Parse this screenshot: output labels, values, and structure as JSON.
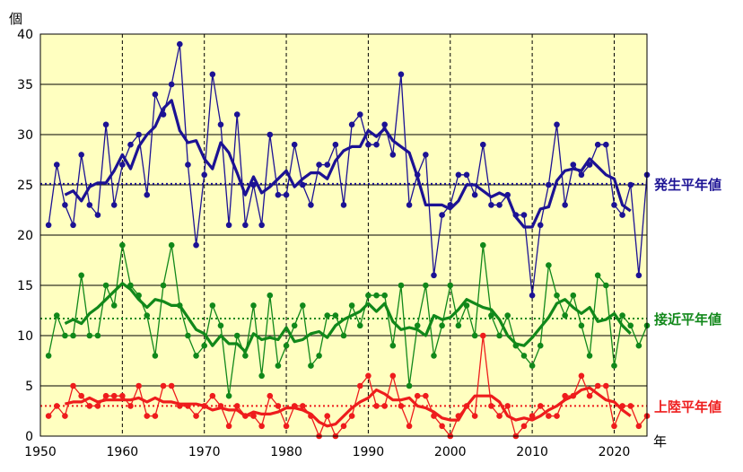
{
  "chart_data": {
    "type": "line",
    "xlabel": "年",
    "ylabel": "個",
    "xlim": [
      1950,
      2024
    ],
    "ylim": [
      0,
      40
    ],
    "x_ticks": [
      "1950",
      "1960",
      "1970",
      "1980",
      "1990",
      "2000",
      "2010",
      "2020"
    ],
    "y_ticks": [
      "0",
      "5",
      "10",
      "15",
      "20",
      "25",
      "30",
      "35",
      "40"
    ],
    "grid": "horizontal solid, vertical dashed at each decade",
    "x": [
      1951,
      1952,
      1953,
      1954,
      1955,
      1956,
      1957,
      1958,
      1959,
      1960,
      1961,
      1962,
      1963,
      1964,
      1965,
      1966,
      1967,
      1968,
      1969,
      1970,
      1971,
      1972,
      1973,
      1974,
      1975,
      1976,
      1977,
      1978,
      1979,
      1980,
      1981,
      1982,
      1983,
      1984,
      1985,
      1986,
      1987,
      1988,
      1989,
      1990,
      1991,
      1992,
      1993,
      1994,
      1995,
      1996,
      1997,
      1998,
      1999,
      2000,
      2001,
      2002,
      2003,
      2004,
      2005,
      2006,
      2007,
      2008,
      2009,
      2010,
      2011,
      2012,
      2013,
      2014,
      2015,
      2016,
      2017,
      2018,
      2019,
      2020,
      2021,
      2022,
      2023,
      2024
    ],
    "series": [
      {
        "name": "発生",
        "color": "#1c1294",
        "values": [
          21,
          27,
          23,
          21,
          28,
          23,
          22,
          31,
          23,
          27,
          29,
          30,
          24,
          34,
          32,
          35,
          39,
          27,
          19,
          26,
          36,
          31,
          21,
          32,
          21,
          25,
          21,
          30,
          24,
          24,
          29,
          25,
          23,
          27,
          27,
          29,
          23,
          31,
          32,
          29,
          29,
          31,
          28,
          36,
          23,
          26,
          28,
          16,
          22,
          23,
          26,
          26,
          24,
          29,
          23,
          23,
          24,
          22,
          22,
          14,
          21,
          25,
          31,
          23,
          27,
          26,
          27,
          29,
          29,
          23,
          22,
          25,
          16,
          26
        ],
        "moving_average": [
          null,
          null,
          24.0,
          24.4,
          23.4,
          24.8,
          25.2,
          25.2,
          26.4,
          28.0,
          26.6,
          28.8,
          30.0,
          30.8,
          32.6,
          33.4,
          30.4,
          29.2,
          29.4,
          27.6,
          26.6,
          29.2,
          28.2,
          26.2,
          24.0,
          25.8,
          24.2,
          24.8,
          25.6,
          26.4,
          24.8,
          25.6,
          26.2,
          26.2,
          25.6,
          27.4,
          28.4,
          28.8,
          28.8,
          30.4,
          29.8,
          30.6,
          29.4,
          28.8,
          28.2,
          25.8,
          23.0,
          23.0,
          23.0,
          22.6,
          23.4,
          25.0,
          25.0,
          24.4,
          23.8,
          24.2,
          23.8,
          21.8,
          20.8,
          20.8,
          22.6,
          22.8,
          25.4,
          26.4,
          26.6,
          26.4,
          27.6,
          26.8,
          26.0,
          25.6,
          23.0,
          22.4,
          null,
          null
        ],
        "normal_value": 25.1,
        "normal_label": "発生平年値"
      },
      {
        "name": "接近",
        "color": "#11881a",
        "values": [
          8,
          12,
          10,
          10,
          16,
          10,
          10,
          15,
          13,
          19,
          15,
          14,
          12,
          8,
          15,
          19,
          13,
          10,
          8,
          9,
          13,
          11,
          4,
          10,
          8,
          13,
          6,
          14,
          7,
          9,
          11,
          13,
          7,
          8,
          12,
          12,
          10,
          13,
          11,
          14,
          14,
          14,
          9,
          15,
          5,
          11,
          15,
          8,
          11,
          15,
          11,
          13,
          10,
          19,
          12,
          10,
          12,
          9,
          8,
          7,
          9,
          17,
          14,
          12,
          14,
          11,
          8,
          16,
          15,
          7,
          12,
          11,
          9,
          11
        ],
        "moving_average": [
          null,
          null,
          11.2,
          11.6,
          11.2,
          12.2,
          12.8,
          13.6,
          14.4,
          15.2,
          14.6,
          13.6,
          12.8,
          13.6,
          13.4,
          13.0,
          13.0,
          11.8,
          10.6,
          10.2,
          9.0,
          10.0,
          9.2,
          9.2,
          8.4,
          10.2,
          9.6,
          9.8,
          9.6,
          10.8,
          9.4,
          9.6,
          10.2,
          10.4,
          9.8,
          11.0,
          11.6,
          12.0,
          12.4,
          13.2,
          12.4,
          13.2,
          11.4,
          10.6,
          10.8,
          10.6,
          10.0,
          12.0,
          11.6,
          11.8,
          12.6,
          13.6,
          13.2,
          12.8,
          12.6,
          11.6,
          10.0,
          9.2,
          9.0,
          9.8,
          10.8,
          11.8,
          13.2,
          13.6,
          12.8,
          12.2,
          12.8,
          11.4,
          11.6,
          12.2,
          11.0,
          10.2,
          null,
          null
        ],
        "normal_value": 11.7,
        "normal_label": "接近平年値"
      },
      {
        "name": "上陸",
        "color": "#ee1c1c",
        "values": [
          2,
          3,
          2,
          5,
          4,
          3,
          3,
          4,
          4,
          4,
          3,
          5,
          2,
          2,
          5,
          5,
          3,
          3,
          2,
          3,
          4,
          3,
          1,
          3,
          2,
          2,
          1,
          4,
          3,
          1,
          3,
          3,
          2,
          0,
          2,
          0,
          1,
          2,
          5,
          6,
          3,
          3,
          6,
          3,
          1,
          4,
          4,
          2,
          1,
          0,
          2,
          3,
          2,
          10,
          3,
          2,
          3,
          0,
          1,
          2,
          3,
          2,
          2,
          4,
          4,
          6,
          4,
          5,
          5,
          1,
          3,
          3,
          1,
          2
        ],
        "moving_average": [
          null,
          null,
          3.2,
          3.4,
          3.4,
          3.8,
          3.4,
          3.6,
          3.6,
          3.6,
          3.6,
          3.8,
          3.4,
          3.8,
          3.4,
          3.4,
          3.2,
          3.2,
          3.2,
          3.0,
          2.6,
          2.8,
          2.6,
          2.6,
          2.0,
          2.4,
          2.2,
          2.2,
          2.4,
          2.8,
          2.8,
          2.6,
          2.2,
          1.4,
          1.0,
          1.2,
          2.0,
          2.8,
          3.4,
          3.8,
          4.6,
          4.2,
          3.6,
          3.6,
          3.8,
          3.0,
          2.8,
          2.4,
          1.8,
          1.6,
          1.6,
          3.0,
          4.0,
          4.0,
          4.0,
          3.4,
          2.0,
          1.6,
          1.8,
          1.6,
          2.0,
          2.6,
          3.0,
          3.6,
          4.0,
          4.6,
          4.8,
          4.2,
          3.6,
          3.4,
          2.6,
          2.0,
          null,
          null
        ],
        "normal_value": 3.0,
        "normal_label": "上陸平年値"
      }
    ]
  }
}
